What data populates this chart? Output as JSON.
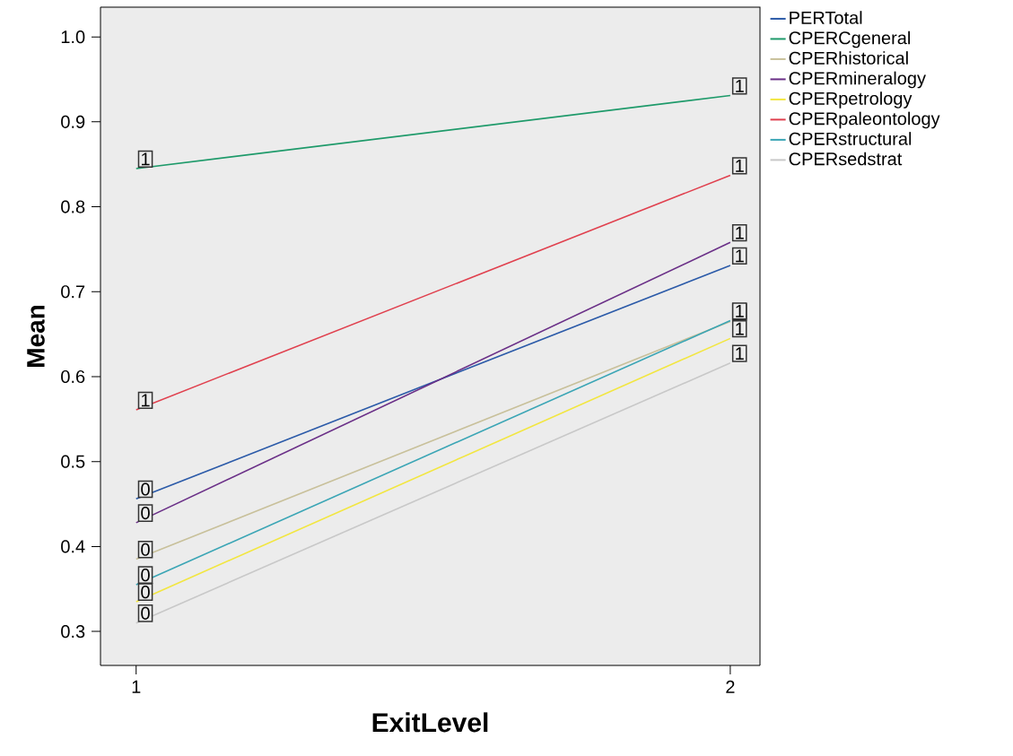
{
  "chart_data": {
    "type": "line",
    "xlabel": "ExitLevel",
    "ylabel": "Mean",
    "x": [
      1,
      2
    ],
    "xlim": [
      0.94,
      2.05
    ],
    "xticks": [
      1,
      2
    ],
    "ylim": [
      0.26,
      1.035
    ],
    "yticks": [
      0.3,
      0.4,
      0.5,
      0.6,
      0.7,
      0.8,
      0.9,
      {
        "value": 1,
        "label": "1.0"
      }
    ],
    "grid": false,
    "legend": "top right",
    "marker": "none",
    "line_style": "solid",
    "series": [
      {
        "name": "PERTotal",
        "color": "#2b5aa8",
        "values": [
          0.456,
          0.731
        ],
        "value_labels": [
          "0",
          "1"
        ]
      },
      {
        "name": "CPERCgeneral",
        "color": "#1e9a6a",
        "values": [
          0.845,
          0.931
        ],
        "value_labels": [
          "1",
          "1"
        ]
      },
      {
        "name": "CPERhistorical",
        "color": "#c8c09a",
        "values": [
          0.385,
          0.665
        ],
        "value_labels": [
          "0",
          "1"
        ]
      },
      {
        "name": "CPERmineralogy",
        "color": "#6a2f87",
        "values": [
          0.428,
          0.758
        ],
        "value_labels": [
          "0",
          "1"
        ]
      },
      {
        "name": "CPERpetrology",
        "color": "#f2e640",
        "values": [
          0.335,
          0.645
        ],
        "value_labels": [
          "0",
          "1"
        ]
      },
      {
        "name": "CPERpaleontology",
        "color": "#e0404e",
        "values": [
          0.561,
          0.837
        ],
        "value_labels": [
          "1",
          "1"
        ]
      },
      {
        "name": "CPERstructural",
        "color": "#3aa5b5",
        "values": [
          0.355,
          0.666
        ],
        "value_labels": [
          "0",
          "1"
        ]
      },
      {
        "name": "CPERsedstrat",
        "color": "#c8c8c8",
        "values": [
          0.31,
          0.616
        ],
        "value_labels": [
          "0",
          "1"
        ]
      }
    ]
  }
}
